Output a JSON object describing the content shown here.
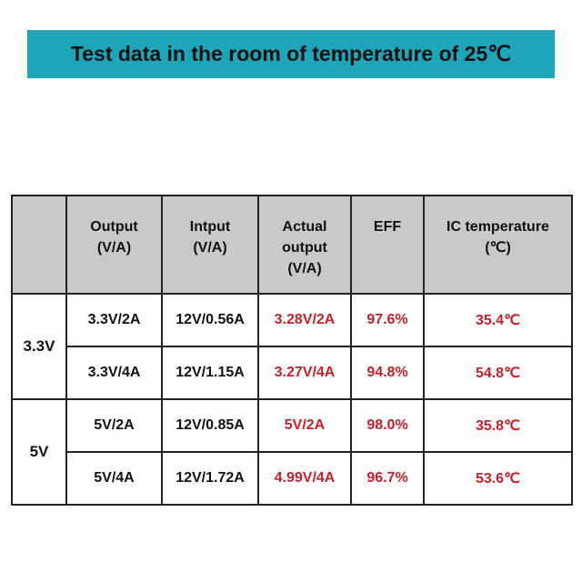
{
  "header": {
    "title": "Test data in the room of temperature of 25℃"
  },
  "table": {
    "columns": [
      [
        "Output",
        "(V/A)"
      ],
      [
        "Intput",
        "(V/A)"
      ],
      [
        "Actual",
        "output",
        "(V/A)"
      ],
      [
        "EFF"
      ],
      [
        "IC temperature",
        "(℃)"
      ]
    ],
    "groups": [
      {
        "label": "3.3V",
        "rows": [
          [
            "3.3V/2A",
            "12V/0.56A",
            "3.28V/2A",
            "97.6%",
            "35.4℃"
          ],
          [
            "3.3V/4A",
            "12V/1.15A",
            "3.27V/4A",
            "94.8%",
            "54.8℃"
          ]
        ]
      },
      {
        "label": "5V",
        "rows": [
          [
            "5V/2A",
            "12V/0.85A",
            "5V/2A",
            "98.0%",
            "35.8℃"
          ],
          [
            "5V/4A",
            "12V/1.72A",
            "4.99V/4A",
            "96.7%",
            "53.6℃"
          ]
        ]
      }
    ]
  }
}
